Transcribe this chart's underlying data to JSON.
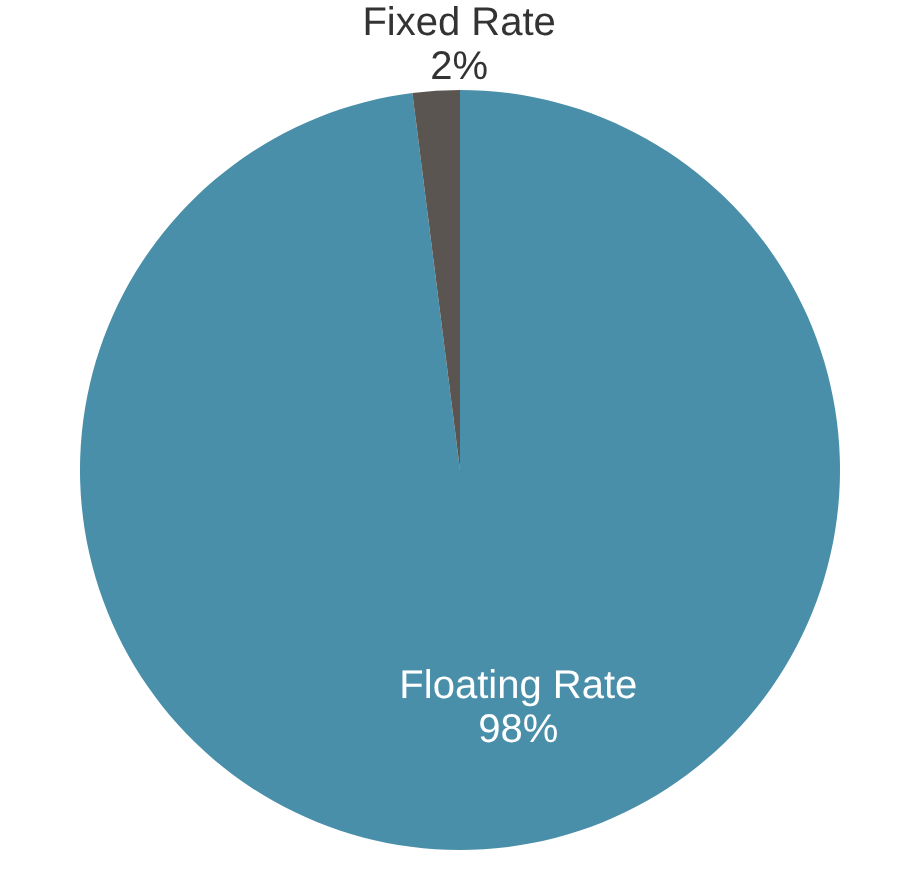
{
  "chart_data": {
    "type": "pie",
    "categories": [
      "Floating Rate",
      "Fixed Rate"
    ],
    "values": [
      98,
      2
    ],
    "colors": [
      "#4a8fa9",
      "#5b5551"
    ],
    "value_labels": [
      "98%",
      "2%"
    ]
  }
}
